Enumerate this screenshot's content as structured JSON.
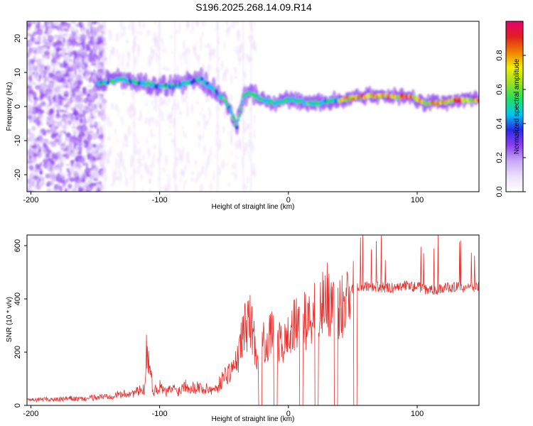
{
  "figure": {
    "title": "S196.2025.268.14.09.R14"
  },
  "chart_data": [
    {
      "type": "heatmap",
      "name": "spectrogram",
      "title": "S196.2025.268.14.09.R14",
      "xlabel": "Height of straight line (km)",
      "ylabel": "Frequency (Hz)",
      "xlim": [
        -203,
        148
      ],
      "ylim": [
        -25,
        25
      ],
      "xticks": [
        -200,
        -100,
        0,
        100
      ],
      "xtick_labels": [
        "-200",
        "-100",
        "0",
        "100"
      ],
      "yticks": [
        -20,
        -10,
        0,
        10,
        20
      ],
      "ytick_labels": [
        "-20",
        "-10",
        "0",
        "10",
        "20"
      ],
      "ridge": {
        "description": "frequency of peak spectral energy vs height",
        "x": [
          -145,
          -130,
          -115,
          -100,
          -88,
          -78,
          -68,
          -58,
          -50,
          -45,
          -40,
          -35,
          -30,
          -20,
          -10,
          0,
          20,
          40,
          60,
          80,
          95,
          105,
          115,
          130,
          148
        ],
        "freq": [
          7,
          8,
          7,
          6,
          6,
          7,
          8,
          5,
          2,
          -1,
          -6,
          3,
          4,
          2,
          1,
          2,
          1,
          2,
          3,
          3,
          3,
          1,
          1,
          2,
          2
        ]
      },
      "colorbar": {
        "label": "Normalized spectral amplitude",
        "range": [
          0.0,
          1.0
        ],
        "ticks": [
          0.0,
          0.2,
          0.4,
          0.6,
          0.8
        ],
        "tick_labels": [
          "0.0",
          "0.2",
          "0.4",
          "0.6",
          "0.8"
        ],
        "colormap": [
          "#ffffff",
          "#ede0fb",
          "#c8a8f4",
          "#8a3ff0",
          "#2a2ae8",
          "#00c8f0",
          "#22e060",
          "#9ae020",
          "#f0f000",
          "#f08000",
          "#e02020",
          "#e8006c"
        ]
      }
    },
    {
      "type": "line",
      "name": "snr",
      "xlabel": "Height of straight line (km)",
      "ylabel": "SNR (10 * v/v)",
      "xlim": [
        -203,
        148
      ],
      "ylim": [
        0,
        640
      ],
      "xticks": [
        -200,
        -100,
        0,
        100
      ],
      "xtick_labels": [
        "-200",
        "-100",
        "0",
        "100"
      ],
      "yticks": [
        0,
        200,
        400,
        600
      ],
      "ytick_labels": [
        "0",
        "200",
        "400",
        "600"
      ],
      "color": "#e8302c",
      "series": [
        {
          "name": "SNR",
          "x": [
            -203,
            -190,
            -180,
            -170,
            -160,
            -150,
            -140,
            -130,
            -120,
            -112,
            -110,
            -105,
            -100,
            -95,
            -90,
            -85,
            -80,
            -75,
            -70,
            -65,
            -60,
            -55,
            -50,
            -45,
            -40,
            -35,
            -30,
            -25,
            -20,
            -15,
            -10,
            -5,
            0,
            5,
            10,
            15,
            20,
            25,
            30,
            35,
            40,
            45,
            48,
            50,
            55,
            60,
            70,
            80,
            90,
            100,
            105,
            110,
            120,
            130,
            140,
            148
          ],
          "y": [
            15,
            20,
            18,
            22,
            20,
            25,
            30,
            35,
            40,
            50,
            190,
            45,
            60,
            40,
            55,
            45,
            70,
            55,
            60,
            50,
            55,
            70,
            110,
            130,
            160,
            280,
            330,
            200,
            230,
            250,
            280,
            220,
            260,
            300,
            330,
            310,
            360,
            380,
            400,
            380,
            360,
            420,
            440,
            440,
            445,
            450,
            445,
            440,
            450,
            445,
            440,
            430,
            440,
            445,
            440,
            445
          ]
        }
      ],
      "dropouts_x": [
        -22,
        -10,
        10,
        22,
        37,
        52
      ]
    }
  ]
}
